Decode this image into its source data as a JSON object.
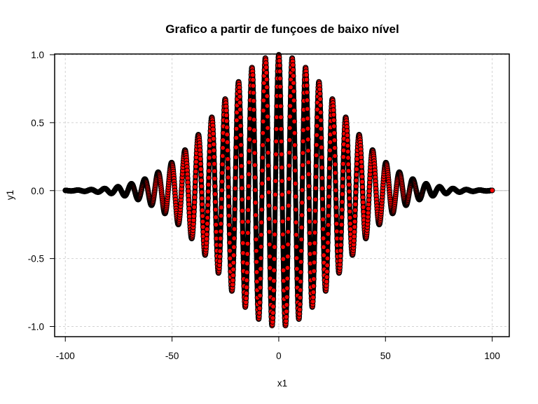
{
  "chart_data": {
    "type": "scatter",
    "title": "Grafico a partir de funçoes de baixo nível",
    "xlabel": "x1",
    "ylabel": "y1",
    "xlim": [
      -105,
      108
    ],
    "ylim": [
      -1.08,
      1.0
    ],
    "x_ticks": [
      -100,
      -50,
      0,
      50,
      100
    ],
    "x_tick_labels": [
      "-100",
      "-50",
      "0",
      "50",
      "100"
    ],
    "y_ticks": [
      -1.0,
      -0.5,
      0.0,
      0.5,
      1.0
    ],
    "y_tick_labels": [
      "-1.0",
      "-0.5",
      "0.0",
      "0.5",
      "1.0"
    ],
    "grid": true,
    "grid_color": "#d3d3d3",
    "reference_line_y": 0,
    "reference_line_color": "#bebebe",
    "series": [
      {
        "type": "line",
        "function": "y1 = cos(x1) * exp(-(x1/40)^2)",
        "x_range": [
          -100,
          100
        ],
        "color": "#000000",
        "line": "thick"
      },
      {
        "type": "points",
        "function": "y1 = cos(x1) * exp(-(x1/40)^2)",
        "x_range": [
          -100,
          100
        ],
        "x_step": 0.1,
        "fill_color": "#ff0000",
        "edge_color": "#000000"
      }
    ]
  }
}
